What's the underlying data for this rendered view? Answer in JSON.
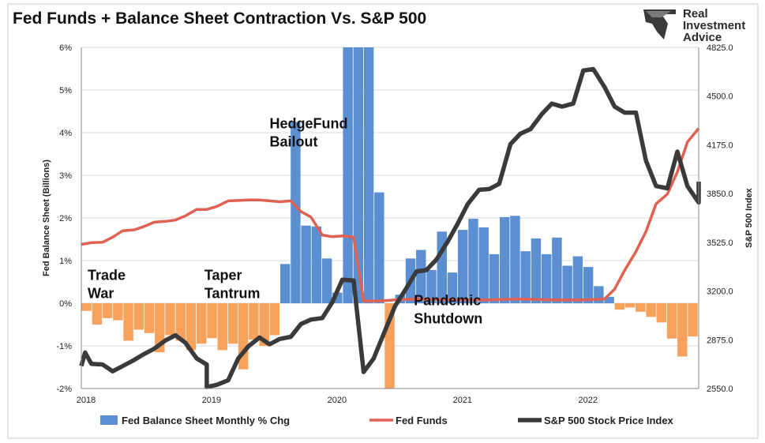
{
  "chart_data": {
    "type": "bar+line",
    "title": "Fed Funds + Balance Sheet Contraction Vs. S&P 500",
    "brand": [
      "Real",
      "Investment",
      "Advice"
    ],
    "ylabel_left": "Fed Balance Sheet (Billions)",
    "ylabel_right": "S&P 500 Index",
    "y_left_range": [
      -2,
      6
    ],
    "y_right_range": [
      2550,
      4825
    ],
    "y_left_ticks": [
      "-2%",
      "-1%",
      "0%",
      "1%",
      "2%",
      "3%",
      "4%",
      "5%",
      "6%"
    ],
    "y_right_ticks": [
      "2550.0",
      "2875.0",
      "3200.0",
      "3525.0",
      "3850.0",
      "4175.0",
      "4500.0",
      "4825.0"
    ],
    "x_range": [
      2018.0,
      2022.92
    ],
    "x_ticks": [
      {
        "label": "2018",
        "x": 2018.0
      },
      {
        "label": "2019",
        "x": 2019.0
      },
      {
        "label": "2020",
        "x": 2020.0
      },
      {
        "label": "2021",
        "x": 2021.0
      },
      {
        "label": "2022",
        "x": 2022.0
      }
    ],
    "balance_sheet_start": 2018.0,
    "balance_sheet_step": 0.0833,
    "balance_sheet_values": [
      -0.18,
      -0.5,
      -0.35,
      -0.4,
      -0.88,
      -0.62,
      -0.7,
      -1.15,
      -0.75,
      -0.88,
      -1.1,
      -0.95,
      -0.82,
      -1.1,
      -0.95,
      -1.55,
      -0.85,
      -1.0,
      -0.75,
      0.92,
      4.25,
      1.82,
      1.8,
      1.05,
      0.25,
      6.0,
      6.0,
      6.0,
      2.6,
      -2.0,
      0.2,
      1.05,
      1.25,
      0.78,
      1.68,
      0.72,
      1.72,
      1.98,
      1.78,
      1.15,
      2.02,
      2.05,
      1.22,
      1.52,
      1.15,
      1.54,
      0.88,
      1.1,
      0.85,
      0.4,
      0.15,
      -0.15,
      -0.1,
      -0.2,
      -0.32,
      -0.45,
      -0.83,
      -1.25,
      -0.78
    ],
    "fed_funds": [
      [
        2018.0,
        1.38
      ],
      [
        2018.08,
        1.42
      ],
      [
        2018.17,
        1.43
      ],
      [
        2018.25,
        1.55
      ],
      [
        2018.33,
        1.7
      ],
      [
        2018.42,
        1.72
      ],
      [
        2018.5,
        1.8
      ],
      [
        2018.58,
        1.9
      ],
      [
        2018.67,
        1.92
      ],
      [
        2018.75,
        1.95
      ],
      [
        2018.83,
        2.05
      ],
      [
        2018.92,
        2.2
      ],
      [
        2019.0,
        2.2
      ],
      [
        2019.08,
        2.27
      ],
      [
        2019.17,
        2.4
      ],
      [
        2019.25,
        2.41
      ],
      [
        2019.33,
        2.42
      ],
      [
        2019.42,
        2.42
      ],
      [
        2019.5,
        2.4
      ],
      [
        2019.58,
        2.38
      ],
      [
        2019.67,
        2.4
      ],
      [
        2019.75,
        2.15
      ],
      [
        2019.83,
        2.02
      ],
      [
        2019.92,
        1.6
      ],
      [
        2020.0,
        1.56
      ],
      [
        2020.08,
        1.58
      ],
      [
        2020.17,
        1.55
      ],
      [
        2020.25,
        0.05
      ],
      [
        2020.33,
        0.05
      ],
      [
        2020.42,
        0.06
      ],
      [
        2020.5,
        0.08
      ],
      [
        2020.67,
        0.1
      ],
      [
        2020.83,
        0.09
      ],
      [
        2021.0,
        0.08
      ],
      [
        2021.25,
        0.08
      ],
      [
        2021.5,
        0.1
      ],
      [
        2021.75,
        0.08
      ],
      [
        2022.0,
        0.08
      ],
      [
        2022.17,
        0.1
      ],
      [
        2022.25,
        0.33
      ],
      [
        2022.33,
        0.77
      ],
      [
        2022.42,
        1.21
      ],
      [
        2022.5,
        1.68
      ],
      [
        2022.58,
        2.33
      ],
      [
        2022.67,
        2.56
      ],
      [
        2022.75,
        3.08
      ],
      [
        2022.83,
        3.78
      ],
      [
        2022.92,
        4.1
      ]
    ],
    "sp500": [
      [
        2018.0,
        2700
      ],
      [
        2018.03,
        2790
      ],
      [
        2018.08,
        2715
      ],
      [
        2018.17,
        2710
      ],
      [
        2018.25,
        2665
      ],
      [
        2018.33,
        2700
      ],
      [
        2018.42,
        2740
      ],
      [
        2018.5,
        2780
      ],
      [
        2018.58,
        2815
      ],
      [
        2018.67,
        2870
      ],
      [
        2018.75,
        2905
      ],
      [
        2018.83,
        2855
      ],
      [
        2018.92,
        2750
      ],
      [
        2019.0,
        2710
      ],
      [
        2019.0,
        2560
      ],
      [
        2019.08,
        2575
      ],
      [
        2019.17,
        2605
      ],
      [
        2019.25,
        2750
      ],
      [
        2019.33,
        2830
      ],
      [
        2019.42,
        2890
      ],
      [
        2019.5,
        2845
      ],
      [
        2019.58,
        2880
      ],
      [
        2019.67,
        2895
      ],
      [
        2019.75,
        2980
      ],
      [
        2019.83,
        3010
      ],
      [
        2019.92,
        3020
      ],
      [
        2020.0,
        3125
      ],
      [
        2020.08,
        3275
      ],
      [
        2020.17,
        3270
      ],
      [
        2020.25,
        2660
      ],
      [
        2020.33,
        2750
      ],
      [
        2020.42,
        2935
      ],
      [
        2020.5,
        3100
      ],
      [
        2020.58,
        3205
      ],
      [
        2020.67,
        3330
      ],
      [
        2020.75,
        3340
      ],
      [
        2020.83,
        3410
      ],
      [
        2020.92,
        3530
      ],
      [
        2021.0,
        3650
      ],
      [
        2021.08,
        3780
      ],
      [
        2021.17,
        3875
      ],
      [
        2021.25,
        3880
      ],
      [
        2021.33,
        3915
      ],
      [
        2021.42,
        4180
      ],
      [
        2021.5,
        4250
      ],
      [
        2021.58,
        4280
      ],
      [
        2021.67,
        4380
      ],
      [
        2021.75,
        4450
      ],
      [
        2021.83,
        4430
      ],
      [
        2021.92,
        4450
      ],
      [
        2022.0,
        4670
      ],
      [
        2022.08,
        4680
      ],
      [
        2022.17,
        4560
      ],
      [
        2022.25,
        4430
      ],
      [
        2022.33,
        4390
      ],
      [
        2022.42,
        4390
      ],
      [
        2022.5,
        4070
      ],
      [
        2022.58,
        3900
      ],
      [
        2022.67,
        3885
      ],
      [
        2022.75,
        4130
      ],
      [
        2022.83,
        3900
      ],
      [
        2022.92,
        3790
      ],
      [
        2023.0,
        3930
      ]
    ],
    "legend": [
      {
        "label": "Fed Balance Sheet Monthly % Chg",
        "type": "bar"
      },
      {
        "label": "Fed Funds",
        "type": "line"
      },
      {
        "label": "S&P 500 Stock Price Index",
        "type": "line"
      }
    ],
    "legend_position": "bottom",
    "grid": "horizontal",
    "colors": {
      "bar_positive": "#5b8fd2",
      "bar_negative": "#f6a15c",
      "fed_funds": "#e06052",
      "sp500": "#3a3a3a",
      "grid": "#d9d9d9"
    },
    "annotations": [
      {
        "lines": [
          "Trade",
          "War"
        ],
        "x": 2018.0,
        "y": 0.55
      },
      {
        "lines": [
          "Taper",
          "Tantrum"
        ],
        "x": 2018.93,
        "y": 0.55
      },
      {
        "lines": [
          "HedgeFund",
          "Bailout"
        ],
        "x": 2019.45,
        "y": 4.1
      },
      {
        "lines": [
          "Pandemic",
          "Shutdown"
        ],
        "x": 2020.6,
        "y": -0.05
      }
    ]
  }
}
